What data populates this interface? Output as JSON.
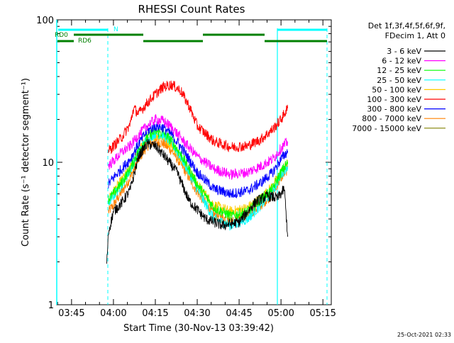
{
  "chart_data": {
    "type": "line",
    "title": "RHESSI Count Rates",
    "xlabel": "Start Time (30-Nov-13 03:39:42)",
    "ylabel": "Count Rate (s⁻¹ detector segment⁻¹)",
    "x_range": [
      "03:39:42",
      "05:18:00"
    ],
    "x_ticks": [
      "03:45",
      "04:00",
      "04:15",
      "04:30",
      "04:45",
      "05:00",
      "05:15"
    ],
    "yscale": "log",
    "ylim": [
      1,
      100
    ],
    "y_ticks": [
      "1",
      "10",
      "100"
    ],
    "legend": {
      "placement": "right",
      "header_lines": [
        "Det 1f,3f,4f,5f,6f,9f,",
        "FDecim 1, Att 0"
      ]
    },
    "flags": [
      {
        "label": "N",
        "color": "#00ffff"
      },
      {
        "label": "RD0",
        "color": "#008000"
      },
      {
        "label": "RD6",
        "color": "#008000"
      }
    ],
    "timestamp": "25-Oct-2021 02:33",
    "series": [
      {
        "name": "3 - 6 keV",
        "color": "#000000",
        "points": [
          [
            3.96,
            1.9
          ],
          [
            3.97,
            3.2
          ],
          [
            4.0,
            4.5
          ],
          [
            4.05,
            5.2
          ],
          [
            4.1,
            6.4
          ],
          [
            4.15,
            11
          ],
          [
            4.2,
            13.5
          ],
          [
            4.25,
            13.0
          ],
          [
            4.3,
            11.2
          ],
          [
            4.38,
            8.5
          ],
          [
            4.45,
            5.4
          ],
          [
            4.55,
            4.0
          ],
          [
            4.65,
            3.6
          ],
          [
            4.75,
            3.8
          ],
          [
            4.85,
            5.3
          ],
          [
            4.92,
            5.8
          ],
          [
            4.98,
            5.6
          ],
          [
            5.02,
            6.5
          ],
          [
            5.04,
            3.0
          ]
        ]
      },
      {
        "name": "6 - 12 keV",
        "color": "#ff00ff",
        "points": [
          [
            3.97,
            9.5
          ],
          [
            4.0,
            10.2
          ],
          [
            4.05,
            11.8
          ],
          [
            4.1,
            13.0
          ],
          [
            4.15,
            15.5
          ],
          [
            4.2,
            18.0
          ],
          [
            4.25,
            20.0
          ],
          [
            4.3,
            19.5
          ],
          [
            4.35,
            17.5
          ],
          [
            4.42,
            14.0
          ],
          [
            4.5,
            11.0
          ],
          [
            4.6,
            9.0
          ],
          [
            4.7,
            8.2
          ],
          [
            4.8,
            8.5
          ],
          [
            4.88,
            9.4
          ],
          [
            4.95,
            10.5
          ],
          [
            5.0,
            12.5
          ],
          [
            5.04,
            14.0
          ]
        ]
      },
      {
        "name": "12 - 25 keV",
        "color": "#00ff00",
        "points": [
          [
            3.97,
            5.5
          ],
          [
            4.0,
            6.0
          ],
          [
            4.05,
            7.2
          ],
          [
            4.1,
            9.0
          ],
          [
            4.15,
            12.0
          ],
          [
            4.2,
            15.0
          ],
          [
            4.25,
            16.5
          ],
          [
            4.3,
            16.0
          ],
          [
            4.35,
            14.0
          ],
          [
            4.42,
            10.5
          ],
          [
            4.5,
            7.0
          ],
          [
            4.6,
            4.8
          ],
          [
            4.7,
            4.2
          ],
          [
            4.8,
            4.5
          ],
          [
            4.88,
            5.5
          ],
          [
            4.95,
            6.5
          ],
          [
            5.0,
            8.5
          ],
          [
            5.04,
            10.0
          ]
        ]
      },
      {
        "name": "25 - 50 keV",
        "color": "#00ffff",
        "points": [
          [
            3.97,
            5.2
          ],
          [
            4.0,
            5.8
          ],
          [
            4.05,
            7.0
          ],
          [
            4.1,
            8.8
          ],
          [
            4.15,
            11.8
          ],
          [
            4.2,
            14.5
          ],
          [
            4.25,
            16.0
          ],
          [
            4.3,
            15.5
          ],
          [
            4.35,
            13.5
          ],
          [
            4.42,
            10.0
          ],
          [
            4.5,
            6.5
          ],
          [
            4.6,
            4.0
          ],
          [
            4.7,
            3.6
          ],
          [
            4.8,
            4.0
          ],
          [
            4.88,
            5.0
          ],
          [
            4.95,
            6.2
          ],
          [
            5.0,
            8.2
          ],
          [
            5.04,
            9.5
          ]
        ]
      },
      {
        "name": "50 - 100 keV",
        "color": "#ffcc00",
        "points": [
          [
            3.97,
            5.5
          ],
          [
            4.0,
            6.2
          ],
          [
            4.05,
            7.5
          ],
          [
            4.1,
            9.0
          ],
          [
            4.15,
            12.0
          ],
          [
            4.2,
            14.5
          ],
          [
            4.25,
            15.5
          ],
          [
            4.3,
            15.0
          ],
          [
            4.35,
            13.2
          ],
          [
            4.42,
            10.0
          ],
          [
            4.5,
            7.0
          ],
          [
            4.6,
            5.0
          ],
          [
            4.7,
            4.5
          ],
          [
            4.8,
            4.8
          ],
          [
            4.88,
            5.6
          ],
          [
            4.95,
            6.8
          ],
          [
            5.0,
            8.5
          ],
          [
            5.04,
            9.8
          ]
        ]
      },
      {
        "name": "100 - 300 keV",
        "color": "#ff0000",
        "points": [
          [
            3.97,
            12.0
          ],
          [
            4.0,
            13.0
          ],
          [
            4.05,
            15.0
          ],
          [
            4.1,
            18.5
          ],
          [
            4.12,
            24.0
          ],
          [
            4.15,
            22.0
          ],
          [
            4.2,
            26.0
          ],
          [
            4.25,
            30.0
          ],
          [
            4.3,
            34.0
          ],
          [
            4.35,
            35.0
          ],
          [
            4.4,
            32.0
          ],
          [
            4.45,
            25.0
          ],
          [
            4.5,
            18.0
          ],
          [
            4.6,
            14.0
          ],
          [
            4.7,
            12.8
          ],
          [
            4.8,
            13.0
          ],
          [
            4.88,
            14.5
          ],
          [
            4.95,
            17.0
          ],
          [
            5.0,
            20.0
          ],
          [
            5.04,
            24.0
          ]
        ]
      },
      {
        "name": "300 - 800 keV",
        "color": "#0000ff",
        "points": [
          [
            3.97,
            7.0
          ],
          [
            4.0,
            7.8
          ],
          [
            4.05,
            9.0
          ],
          [
            4.1,
            10.5
          ],
          [
            4.15,
            13.5
          ],
          [
            4.2,
            16.5
          ],
          [
            4.25,
            18.0
          ],
          [
            4.3,
            17.5
          ],
          [
            4.35,
            15.5
          ],
          [
            4.42,
            12.0
          ],
          [
            4.5,
            8.5
          ],
          [
            4.6,
            6.5
          ],
          [
            4.7,
            6.0
          ],
          [
            4.8,
            6.3
          ],
          [
            4.88,
            7.2
          ],
          [
            4.95,
            8.5
          ],
          [
            5.0,
            10.5
          ],
          [
            5.04,
            12.0
          ]
        ]
      },
      {
        "name": "800 - 7000 keV",
        "color": "#ff8000",
        "points": [
          [
            3.97,
            4.5
          ],
          [
            4.0,
            5.0
          ],
          [
            4.05,
            6.2
          ],
          [
            4.1,
            7.8
          ],
          [
            4.15,
            10.5
          ],
          [
            4.2,
            13.0
          ],
          [
            4.25,
            14.0
          ],
          [
            4.3,
            13.5
          ],
          [
            4.35,
            12.0
          ],
          [
            4.42,
            9.0
          ],
          [
            4.5,
            6.2
          ],
          [
            4.6,
            4.3
          ],
          [
            4.7,
            3.9
          ],
          [
            4.8,
            4.2
          ],
          [
            4.88,
            5.0
          ],
          [
            4.95,
            6.0
          ],
          [
            5.0,
            7.8
          ],
          [
            5.04,
            9.0
          ]
        ]
      },
      {
        "name": "7000 - 15000 keV",
        "color": "#808000",
        "points": []
      }
    ]
  }
}
